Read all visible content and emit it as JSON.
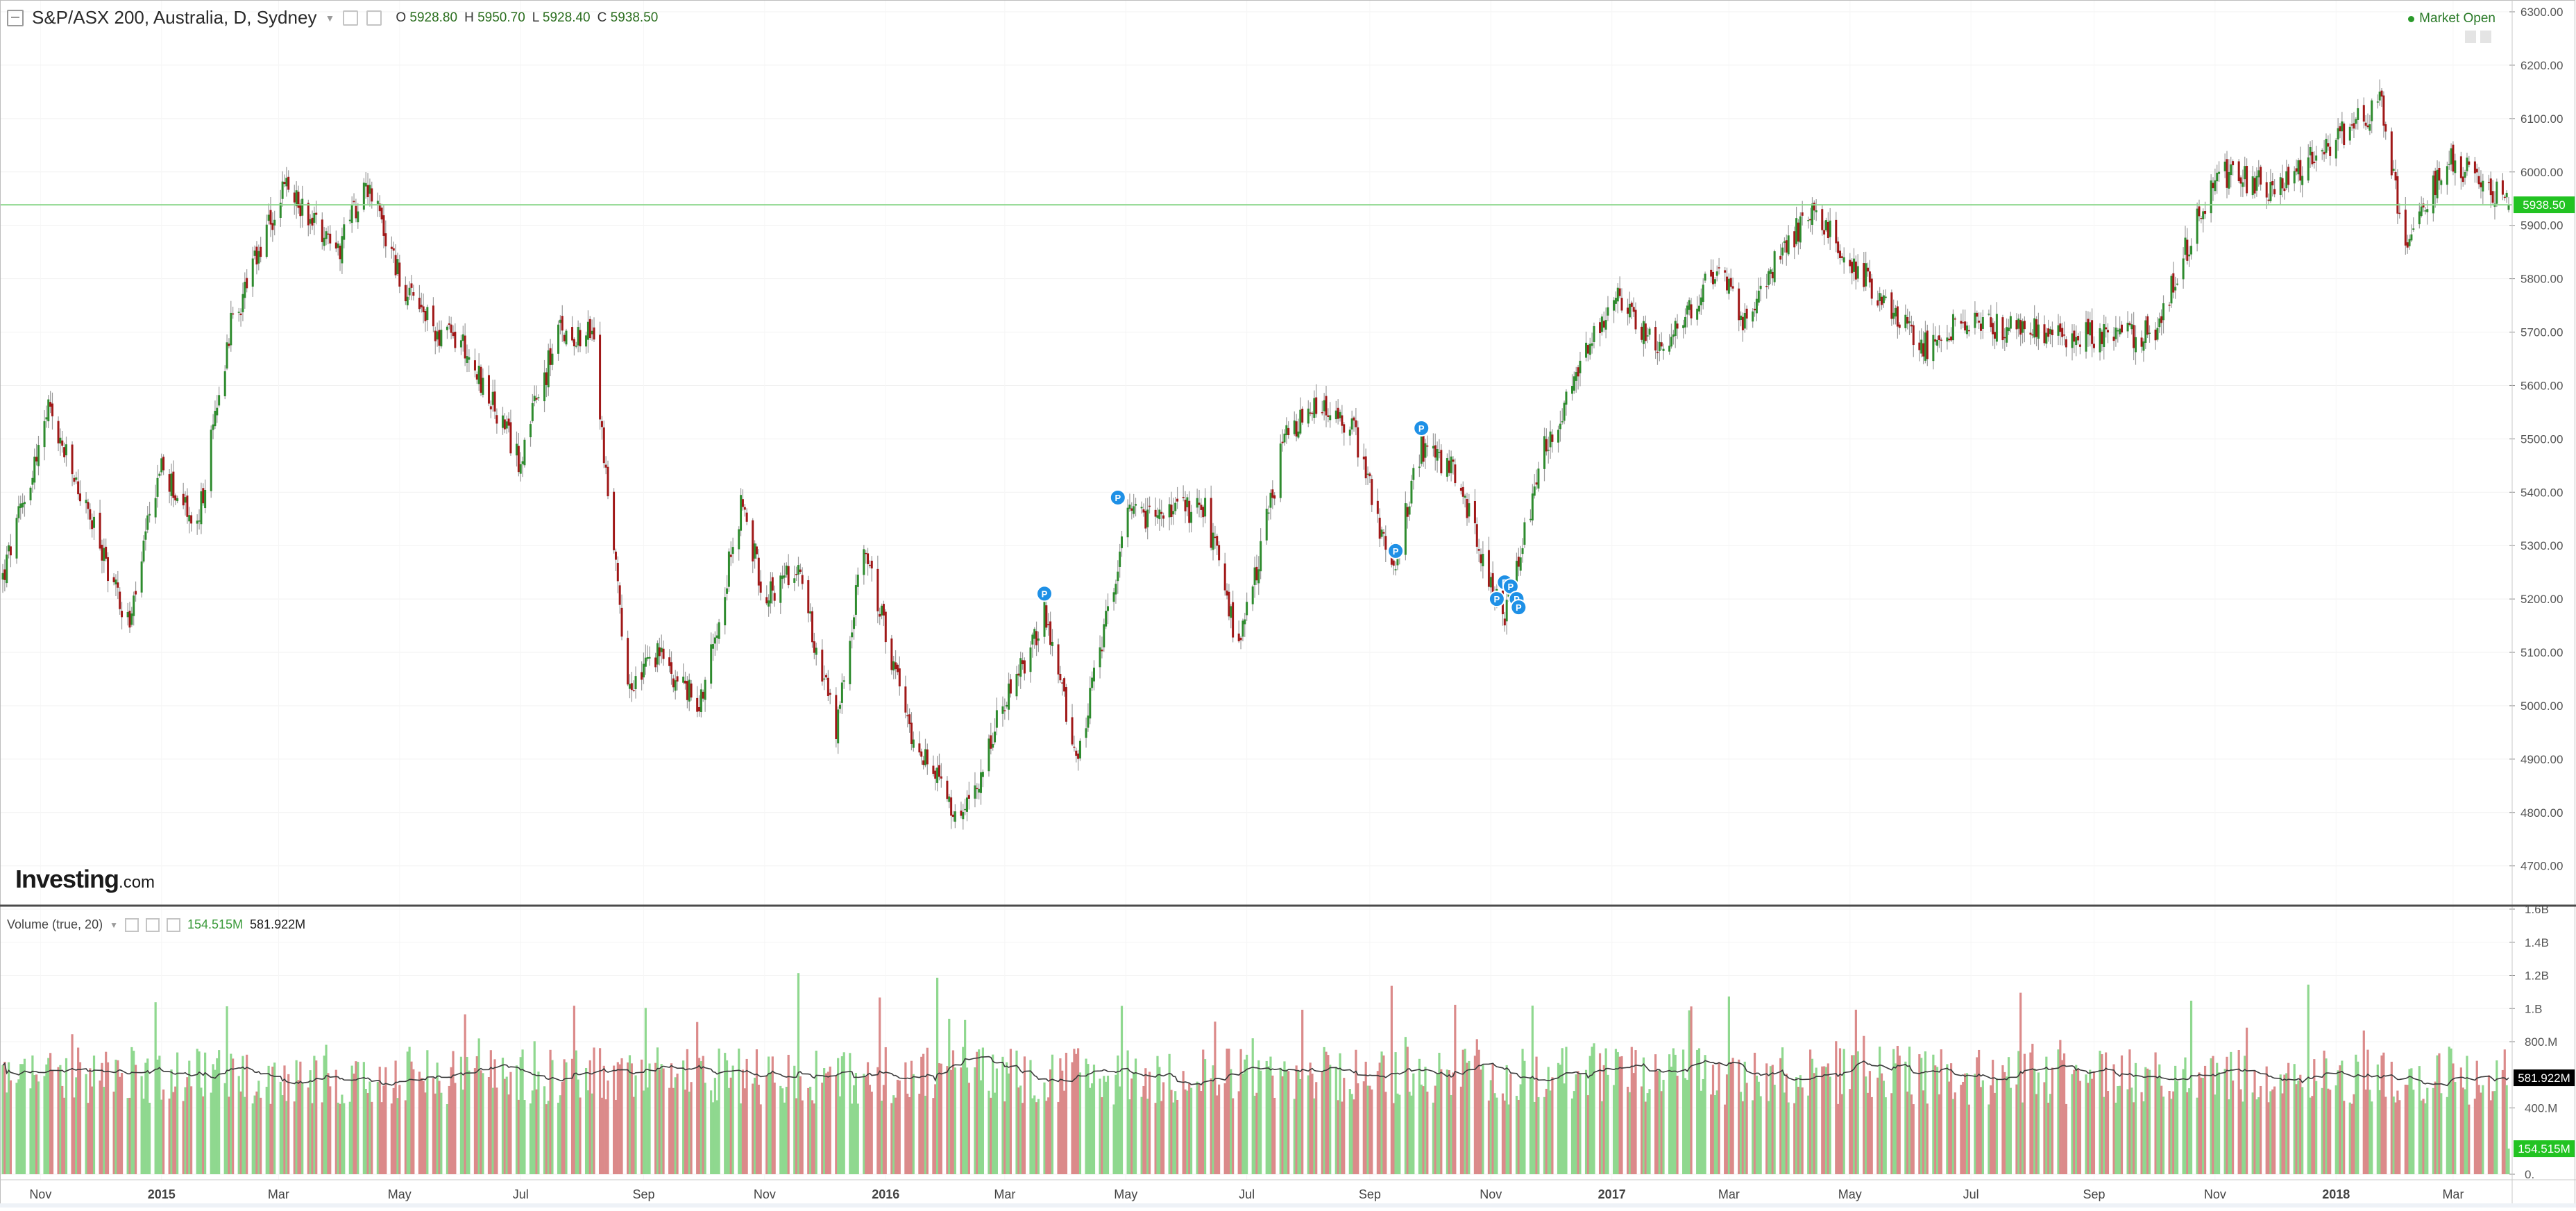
{
  "header": {
    "symbol": "S&P/ASX 200, Australia, D, Sydney",
    "o_label": "O",
    "o_value": "5928.80",
    "h_label": "H",
    "h_value": "5950.70",
    "l_label": "L",
    "l_value": "5928.40",
    "c_label": "C",
    "c_value": "5938.50"
  },
  "market_status": "Market Open",
  "logo": {
    "brand": "Investing",
    "domain": ".com"
  },
  "volume_header": {
    "label": "Volume (true, 20)",
    "current": "154.515M",
    "ma": "581.922M"
  },
  "colors": {
    "up_candle": "#2e8b2e",
    "down_candle": "#a01818",
    "volume_up": "#8fd88f",
    "volume_down": "#db8a8a",
    "last_price_line": "#8fd88f",
    "last_price_tag": "#22c322",
    "marker": "#1e90e6"
  },
  "chart_data": [
    {
      "type": "candlestick",
      "title": "S&P/ASX 200, Australia, D, Sydney",
      "y_axis_side": "right",
      "ylim": [
        4650,
        6320
      ],
      "y_ticks": [
        "4700.00",
        "4800.00",
        "4900.00",
        "5000.00",
        "5100.00",
        "5200.00",
        "5300.00",
        "5400.00",
        "5500.00",
        "5600.00",
        "5700.00",
        "5800.00",
        "5900.00",
        "6000.00",
        "6100.00",
        "6200.00",
        "6300.00"
      ],
      "x_ticks": [
        "Nov",
        "2015",
        "Mar",
        "May",
        "Jul",
        "Sep",
        "Nov",
        "2016",
        "Mar",
        "May",
        "Jul",
        "Sep",
        "Nov",
        "2017",
        "Mar",
        "May",
        "Jul",
        "Sep",
        "Nov",
        "2018",
        "Mar"
      ],
      "x_range": [
        "2014-10-13",
        "2018-03-29"
      ],
      "last_price": "5938.50",
      "event_markers": {
        "label": "P",
        "dates": [
          "2016-03-21",
          "2016-04-27",
          "2016-09-14",
          "2016-09-27",
          "2016-11-04",
          "2016-11-08",
          "2016-11-11",
          "2016-11-14",
          "2016-11-15"
        ]
      },
      "price_path": [
        [
          "2014-10-13",
          5240
        ],
        [
          "2014-11-05",
          5550
        ],
        [
          "2014-11-28",
          5330
        ],
        [
          "2014-12-16",
          5150
        ],
        [
          "2014-12-31",
          5450
        ],
        [
          "2015-01-19",
          5330
        ],
        [
          "2015-02-04",
          5700
        ],
        [
          "2015-03-04",
          5970
        ],
        [
          "2015-04-01",
          5860
        ],
        [
          "2015-04-14",
          5990
        ],
        [
          "2015-05-04",
          5770
        ],
        [
          "2015-05-20",
          5700
        ],
        [
          "2015-06-02",
          5680
        ],
        [
          "2015-06-30",
          5460
        ],
        [
          "2015-07-20",
          5700
        ],
        [
          "2015-08-06",
          5700
        ],
        [
          "2015-08-24",
          5020
        ],
        [
          "2015-09-08",
          5100
        ],
        [
          "2015-09-29",
          5000
        ],
        [
          "2015-10-20",
          5370
        ],
        [
          "2015-11-02",
          5200
        ],
        [
          "2015-11-17",
          5270
        ],
        [
          "2015-12-07",
          4950
        ],
        [
          "2015-12-21",
          5300
        ],
        [
          "2016-01-12",
          4970
        ],
        [
          "2016-02-08",
          4770
        ],
        [
          "2016-02-24",
          4950
        ],
        [
          "2016-03-21",
          5170
        ],
        [
          "2016-04-07",
          4900
        ],
        [
          "2016-05-02",
          5350
        ],
        [
          "2016-06-10",
          5370
        ],
        [
          "2016-06-27",
          5100
        ],
        [
          "2016-07-20",
          5500
        ],
        [
          "2016-08-05",
          5560
        ],
        [
          "2016-08-24",
          5520
        ],
        [
          "2016-09-12",
          5250
        ],
        [
          "2016-09-27",
          5480
        ],
        [
          "2016-10-13",
          5440
        ],
        [
          "2016-11-08",
          5160
        ],
        [
          "2016-11-28",
          5480
        ],
        [
          "2017-01-02",
          5770
        ],
        [
          "2017-01-27",
          5660
        ],
        [
          "2017-02-23",
          5820
        ],
        [
          "2017-03-08",
          5730
        ],
        [
          "2017-04-11",
          5930
        ],
        [
          "2017-05-16",
          5770
        ],
        [
          "2017-06-06",
          5670
        ],
        [
          "2017-06-28",
          5720
        ],
        [
          "2017-08-11",
          5700
        ],
        [
          "2017-09-08",
          5690
        ],
        [
          "2017-10-01",
          5700
        ],
        [
          "2017-11-02",
          6000
        ],
        [
          "2017-12-01",
          5970
        ],
        [
          "2018-01-03",
          6070
        ],
        [
          "2018-01-24",
          6130
        ],
        [
          "2018-02-05",
          5840
        ],
        [
          "2018-02-26",
          6030
        ],
        [
          "2018-03-29",
          5938
        ]
      ]
    },
    {
      "type": "bar",
      "title": "Volume (true, 20)",
      "y_axis_side": "right",
      "ylim": [
        0,
        1600000000
      ],
      "y_ticks": [
        "0.",
        "400.M",
        "800.M",
        "1.B",
        "1.2B",
        "1.4B",
        "1.6B"
      ],
      "last_volume": "154.515M",
      "moving_average": {
        "period": 20,
        "last": "581.922M"
      }
    }
  ]
}
